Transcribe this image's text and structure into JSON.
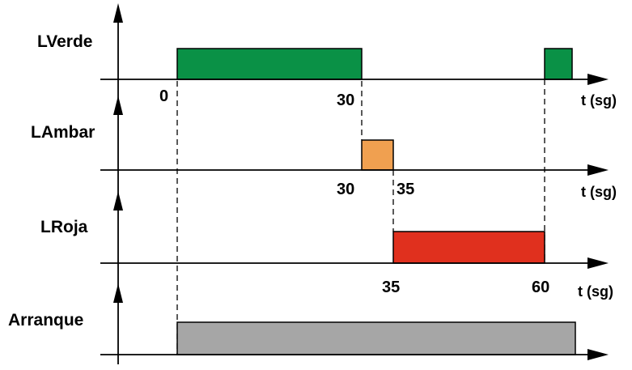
{
  "diagram": {
    "time_unit_label": "t (sg)",
    "signals": [
      {
        "key": "verde",
        "name": "LVerde",
        "color": "#0a9146",
        "pulses": [
          {
            "start": 0,
            "end": 30
          },
          {
            "start": 60,
            "end": 65
          }
        ],
        "tick_labels": [
          "0",
          "30"
        ]
      },
      {
        "key": "ambar",
        "name": "LAmbar",
        "color": "#f0a050",
        "pulses": [
          {
            "start": 30,
            "end": 35
          }
        ],
        "tick_labels": [
          "30",
          "35"
        ]
      },
      {
        "key": "roja",
        "name": "LRoja",
        "color": "#e0301e",
        "pulses": [
          {
            "start": 35,
            "end": 60
          }
        ],
        "tick_labels": [
          "35",
          "60"
        ]
      },
      {
        "key": "arranque",
        "name": "Arranque",
        "color": "#a6a6a6",
        "pulses": [
          {
            "start": 0,
            "end": 65
          }
        ],
        "tick_labels": []
      }
    ]
  }
}
